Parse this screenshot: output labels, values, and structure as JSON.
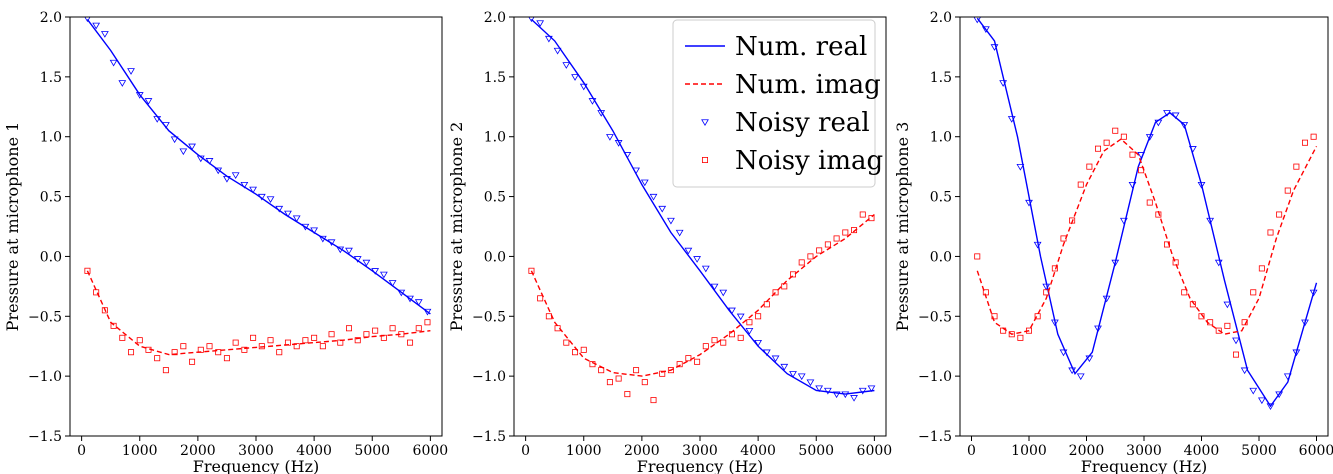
{
  "figure": {
    "colors": {
      "real": "#0000ff",
      "imag": "#ff0000",
      "axis": "#000000",
      "background": "#ffffff"
    }
  },
  "legend": {
    "placement": "top-right of middle panel",
    "entries": [
      {
        "label": "Num. real",
        "style": "line-solid",
        "color": "#0000ff"
      },
      {
        "label": "Num. imag",
        "style": "line-dashed",
        "color": "#ff0000"
      },
      {
        "label": "Noisy real",
        "style": "triangle-down-marker",
        "color": "#0000ff"
      },
      {
        "label": "Noisy imag",
        "style": "square-marker",
        "color": "#ff0000"
      }
    ]
  },
  "chart_data": [
    {
      "type": "line",
      "panel": "microphone-1",
      "xlabel": "Frequency (Hz)",
      "ylabel": "Pressure at microphone 1",
      "xlim": [
        -200,
        6200
      ],
      "ylim": [
        -1.5,
        2.0
      ],
      "xticks": [
        0,
        1000,
        2000,
        3000,
        4000,
        5000,
        6000
      ],
      "yticks": [
        -1.5,
        -1.0,
        -0.5,
        0.0,
        0.5,
        1.0,
        1.5,
        2.0
      ],
      "ytick_labels": [
        "−1.5",
        "−1.0",
        "−0.5",
        "0.0",
        "0.5",
        "1.0",
        "1.5",
        "2.0"
      ],
      "grid": false,
      "series": [
        {
          "name": "Num. real",
          "kind": "line-solid",
          "color": "#0000ff",
          "x": [
            100,
            500,
            1000,
            1500,
            2000,
            2500,
            3000,
            3500,
            4000,
            4500,
            5000,
            5500,
            6000
          ],
          "y": [
            1.98,
            1.72,
            1.35,
            1.05,
            0.85,
            0.67,
            0.52,
            0.35,
            0.2,
            0.05,
            -0.12,
            -0.3,
            -0.48
          ]
        },
        {
          "name": "Num. imag",
          "kind": "line-dashed",
          "color": "#ff0000",
          "x": [
            100,
            500,
            1000,
            1500,
            2000,
            2500,
            3000,
            3500,
            4000,
            4500,
            5000,
            5500,
            6000
          ],
          "y": [
            -0.12,
            -0.55,
            -0.75,
            -0.82,
            -0.8,
            -0.78,
            -0.76,
            -0.74,
            -0.72,
            -0.7,
            -0.67,
            -0.65,
            -0.62
          ]
        },
        {
          "name": "Noisy real",
          "kind": "triangle-markers",
          "color": "#0000ff",
          "x": [
            100,
            250,
            400,
            550,
            700,
            850,
            1000,
            1150,
            1300,
            1450,
            1600,
            1750,
            1900,
            2050,
            2200,
            2350,
            2500,
            2650,
            2800,
            2950,
            3100,
            3250,
            3400,
            3550,
            3700,
            3850,
            4000,
            4150,
            4300,
            4450,
            4600,
            4750,
            4900,
            5050,
            5200,
            5350,
            5500,
            5650,
            5800,
            5950
          ],
          "y": [
            1.99,
            1.93,
            1.86,
            1.62,
            1.45,
            1.55,
            1.35,
            1.3,
            1.15,
            1.1,
            0.98,
            0.88,
            0.92,
            0.82,
            0.8,
            0.72,
            0.65,
            0.68,
            0.6,
            0.56,
            0.5,
            0.48,
            0.4,
            0.36,
            0.32,
            0.25,
            0.22,
            0.15,
            0.12,
            0.06,
            0.05,
            -0.02,
            -0.05,
            -0.12,
            -0.15,
            -0.22,
            -0.3,
            -0.35,
            -0.38,
            -0.46
          ]
        },
        {
          "name": "Noisy imag",
          "kind": "square-markers",
          "color": "#ff0000",
          "x": [
            100,
            250,
            400,
            550,
            700,
            850,
            1000,
            1150,
            1300,
            1450,
            1600,
            1750,
            1900,
            2050,
            2200,
            2350,
            2500,
            2650,
            2800,
            2950,
            3100,
            3250,
            3400,
            3550,
            3700,
            3850,
            4000,
            4150,
            4300,
            4450,
            4600,
            4750,
            4900,
            5050,
            5200,
            5350,
            5500,
            5650,
            5800,
            5950
          ],
          "y": [
            -0.12,
            -0.3,
            -0.45,
            -0.58,
            -0.68,
            -0.8,
            -0.7,
            -0.78,
            -0.85,
            -0.95,
            -0.8,
            -0.75,
            -0.88,
            -0.78,
            -0.75,
            -0.8,
            -0.85,
            -0.72,
            -0.78,
            -0.68,
            -0.75,
            -0.7,
            -0.8,
            -0.72,
            -0.75,
            -0.7,
            -0.68,
            -0.75,
            -0.65,
            -0.72,
            -0.6,
            -0.7,
            -0.65,
            -0.62,
            -0.68,
            -0.6,
            -0.65,
            -0.72,
            -0.6,
            -0.55
          ]
        }
      ]
    },
    {
      "type": "line",
      "panel": "microphone-2",
      "xlabel": "Frequency (Hz)",
      "ylabel": "Pressure at microphone 2",
      "xlim": [
        -200,
        6200
      ],
      "ylim": [
        -1.5,
        2.0
      ],
      "xticks": [
        0,
        1000,
        2000,
        3000,
        4000,
        5000,
        6000
      ],
      "yticks": [
        -1.5,
        -1.0,
        -0.5,
        0.0,
        0.5,
        1.0,
        1.5,
        2.0
      ],
      "ytick_labels": [
        "−1.5",
        "−1.0",
        "−0.5",
        "0.0",
        "0.5",
        "1.0",
        "1.5",
        "2.0"
      ],
      "grid": false,
      "series": [
        {
          "name": "Num. real",
          "kind": "line-solid",
          "color": "#0000ff",
          "x": [
            100,
            500,
            1000,
            1500,
            2000,
            2500,
            3000,
            3500,
            4000,
            4500,
            5000,
            5500,
            6000
          ],
          "y": [
            1.98,
            1.8,
            1.45,
            1.05,
            0.6,
            0.2,
            -0.12,
            -0.45,
            -0.75,
            -0.98,
            -1.12,
            -1.15,
            -1.12
          ]
        },
        {
          "name": "Num. imag",
          "kind": "line-dashed",
          "color": "#ff0000",
          "x": [
            100,
            500,
            1000,
            1500,
            2000,
            2500,
            3000,
            3500,
            4000,
            4500,
            5000,
            5500,
            6000
          ],
          "y": [
            -0.12,
            -0.55,
            -0.85,
            -0.97,
            -1.0,
            -0.95,
            -0.82,
            -0.65,
            -0.45,
            -0.2,
            0.0,
            0.15,
            0.35
          ]
        },
        {
          "name": "Noisy real",
          "kind": "triangle-markers",
          "color": "#0000ff",
          "x": [
            100,
            250,
            400,
            550,
            700,
            850,
            1000,
            1150,
            1300,
            1450,
            1600,
            1750,
            1900,
            2050,
            2200,
            2350,
            2500,
            2650,
            2800,
            2950,
            3100,
            3250,
            3400,
            3550,
            3700,
            3850,
            4000,
            4150,
            4300,
            4450,
            4600,
            4750,
            4900,
            5050,
            5200,
            5350,
            5500,
            5650,
            5800,
            5950
          ],
          "y": [
            1.99,
            1.95,
            1.82,
            1.72,
            1.6,
            1.5,
            1.42,
            1.3,
            1.2,
            1.0,
            0.95,
            0.85,
            0.72,
            0.62,
            0.5,
            0.4,
            0.3,
            0.2,
            0.05,
            -0.02,
            -0.1,
            -0.25,
            -0.3,
            -0.45,
            -0.5,
            -0.62,
            -0.72,
            -0.8,
            -0.85,
            -0.92,
            -0.98,
            -1.0,
            -1.05,
            -1.1,
            -1.12,
            -1.15,
            -1.15,
            -1.18,
            -1.12,
            -1.1
          ]
        },
        {
          "name": "Noisy imag",
          "kind": "square-markers",
          "color": "#ff0000",
          "x": [
            100,
            250,
            400,
            550,
            700,
            850,
            1000,
            1150,
            1300,
            1450,
            1600,
            1750,
            1900,
            2050,
            2200,
            2350,
            2500,
            2650,
            2800,
            2950,
            3100,
            3250,
            3400,
            3550,
            3700,
            3850,
            4000,
            4150,
            4300,
            4450,
            4600,
            4750,
            4900,
            5050,
            5200,
            5350,
            5500,
            5650,
            5800,
            5950
          ],
          "y": [
            -0.12,
            -0.35,
            -0.5,
            -0.6,
            -0.72,
            -0.8,
            -0.78,
            -0.9,
            -0.95,
            -1.05,
            -1.02,
            -1.15,
            -0.95,
            -1.05,
            -1.2,
            -0.98,
            -0.95,
            -0.9,
            -0.85,
            -0.88,
            -0.75,
            -0.7,
            -0.72,
            -0.65,
            -0.68,
            -0.55,
            -0.5,
            -0.4,
            -0.3,
            -0.25,
            -0.15,
            -0.05,
            0.0,
            0.05,
            0.1,
            0.15,
            0.2,
            0.22,
            0.35,
            0.32
          ]
        }
      ]
    },
    {
      "type": "line",
      "panel": "microphone-3",
      "xlabel": "Frequency (Hz)",
      "ylabel": "Pressure at microphone 3",
      "xlim": [
        -200,
        6200
      ],
      "ylim": [
        -1.5,
        2.0
      ],
      "xticks": [
        0,
        1000,
        2000,
        3000,
        4000,
        5000,
        6000
      ],
      "yticks": [
        -1.5,
        -1.0,
        -0.5,
        0.0,
        0.5,
        1.0,
        1.5,
        2.0
      ],
      "ytick_labels": [
        "−1.5",
        "−1.0",
        "−0.5",
        "0.0",
        "0.5",
        "1.0",
        "1.5",
        "2.0"
      ],
      "grid": false,
      "series": [
        {
          "name": "Num. real",
          "kind": "line-solid",
          "color": "#0000ff",
          "x": [
            100,
            400,
            800,
            1200,
            1500,
            1800,
            2100,
            2500,
            2900,
            3200,
            3450,
            3700,
            4000,
            4400,
            4800,
            5200,
            5500,
            5800,
            6000
          ],
          "y": [
            1.99,
            1.8,
            1.0,
            0.0,
            -0.65,
            -0.98,
            -0.8,
            -0.05,
            0.75,
            1.12,
            1.2,
            1.1,
            0.6,
            -0.2,
            -0.95,
            -1.25,
            -1.05,
            -0.55,
            -0.22
          ]
        },
        {
          "name": "Num. imag",
          "kind": "line-dashed",
          "color": "#ff0000",
          "x": [
            100,
            400,
            700,
            1000,
            1300,
            1600,
            2000,
            2300,
            2600,
            2900,
            3200,
            3500,
            3800,
            4100,
            4400,
            4700,
            5000,
            5300,
            5600,
            6000
          ],
          "y": [
            -0.12,
            -0.55,
            -0.65,
            -0.62,
            -0.35,
            0.1,
            0.6,
            0.88,
            0.98,
            0.85,
            0.45,
            0.0,
            -0.35,
            -0.55,
            -0.65,
            -0.62,
            -0.35,
            0.15,
            0.55,
            0.92
          ]
        },
        {
          "name": "Noisy real",
          "kind": "triangle-markers",
          "color": "#0000ff",
          "x": [
            100,
            250,
            400,
            550,
            700,
            850,
            1000,
            1150,
            1300,
            1450,
            1600,
            1750,
            1900,
            2050,
            2200,
            2350,
            2500,
            2650,
            2800,
            2950,
            3100,
            3250,
            3400,
            3550,
            3700,
            3850,
            4000,
            4150,
            4300,
            4450,
            4600,
            4750,
            4900,
            5050,
            5200,
            5350,
            5500,
            5650,
            5800,
            5950
          ],
          "y": [
            1.98,
            1.9,
            1.75,
            1.45,
            1.15,
            0.75,
            0.45,
            0.1,
            -0.25,
            -0.55,
            -0.8,
            -0.95,
            -1.0,
            -0.85,
            -0.6,
            -0.35,
            -0.05,
            0.3,
            0.6,
            0.85,
            1.0,
            1.12,
            1.2,
            1.18,
            1.1,
            0.9,
            0.6,
            0.3,
            -0.05,
            -0.4,
            -0.7,
            -0.95,
            -1.12,
            -1.2,
            -1.25,
            -1.15,
            -1.0,
            -0.8,
            -0.55,
            -0.3
          ]
        },
        {
          "name": "Noisy imag",
          "kind": "square-markers",
          "color": "#ff0000",
          "x": [
            100,
            250,
            400,
            550,
            700,
            850,
            1000,
            1150,
            1300,
            1450,
            1600,
            1750,
            1900,
            2050,
            2200,
            2350,
            2500,
            2650,
            2800,
            2950,
            3100,
            3250,
            3400,
            3550,
            3700,
            3850,
            4000,
            4150,
            4300,
            4450,
            4600,
            4750,
            4900,
            5050,
            5200,
            5350,
            5500,
            5650,
            5800,
            5950
          ],
          "y": [
            0.0,
            -0.3,
            -0.5,
            -0.62,
            -0.65,
            -0.68,
            -0.62,
            -0.5,
            -0.3,
            -0.1,
            0.15,
            0.3,
            0.6,
            0.75,
            0.9,
            0.95,
            1.05,
            1.0,
            0.85,
            0.72,
            0.45,
            0.35,
            0.1,
            -0.05,
            -0.3,
            -0.4,
            -0.5,
            -0.55,
            -0.62,
            -0.58,
            -0.82,
            -0.55,
            -0.3,
            -0.1,
            0.2,
            0.35,
            0.55,
            0.75,
            0.95,
            1.0
          ]
        }
      ]
    }
  ]
}
